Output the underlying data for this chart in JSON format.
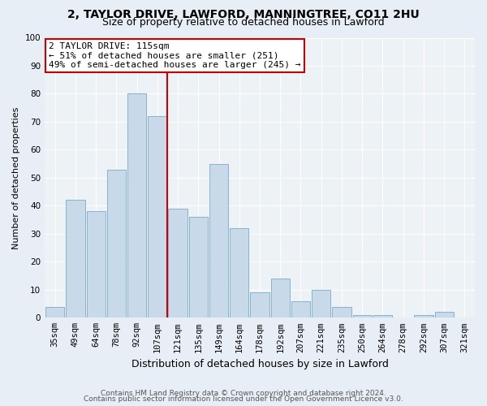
{
  "title": "2, TAYLOR DRIVE, LAWFORD, MANNINGTREE, CO11 2HU",
  "subtitle": "Size of property relative to detached houses in Lawford",
  "xlabel": "Distribution of detached houses by size in Lawford",
  "ylabel": "Number of detached properties",
  "categories": [
    "35sqm",
    "49sqm",
    "64sqm",
    "78sqm",
    "92sqm",
    "107sqm",
    "121sqm",
    "135sqm",
    "149sqm",
    "164sqm",
    "178sqm",
    "192sqm",
    "207sqm",
    "221sqm",
    "235sqm",
    "250sqm",
    "264sqm",
    "278sqm",
    "292sqm",
    "307sqm",
    "321sqm"
  ],
  "values": [
    4,
    42,
    38,
    53,
    80,
    72,
    39,
    36,
    55,
    32,
    9,
    14,
    6,
    10,
    4,
    1,
    1,
    0,
    1,
    2,
    0
  ],
  "bar_color": "#c8d9ea",
  "bar_edge_color": "#7aaac8",
  "annotation_line1": "2 TAYLOR DRIVE: 115sqm",
  "annotation_line2": "← 51% of detached houses are smaller (251)",
  "annotation_line3": "49% of semi-detached houses are larger (245) →",
  "annotation_box_color": "#ffffff",
  "annotation_box_edge": "#cc0000",
  "line_color": "#cc0000",
  "ylim": [
    0,
    100
  ],
  "yticks": [
    0,
    10,
    20,
    30,
    40,
    50,
    60,
    70,
    80,
    90,
    100
  ],
  "footer1": "Contains HM Land Registry data © Crown copyright and database right 2024.",
  "footer2": "Contains public sector information licensed under the Open Government Licence v3.0.",
  "background_color": "#e8eef5",
  "plot_bg_color": "#edf2f7",
  "grid_color": "#ffffff",
  "title_fontsize": 10,
  "subtitle_fontsize": 9,
  "ylabel_fontsize": 8,
  "xlabel_fontsize": 9,
  "tick_fontsize": 7.5,
  "footer_fontsize": 6.5,
  "annotation_fontsize": 8
}
